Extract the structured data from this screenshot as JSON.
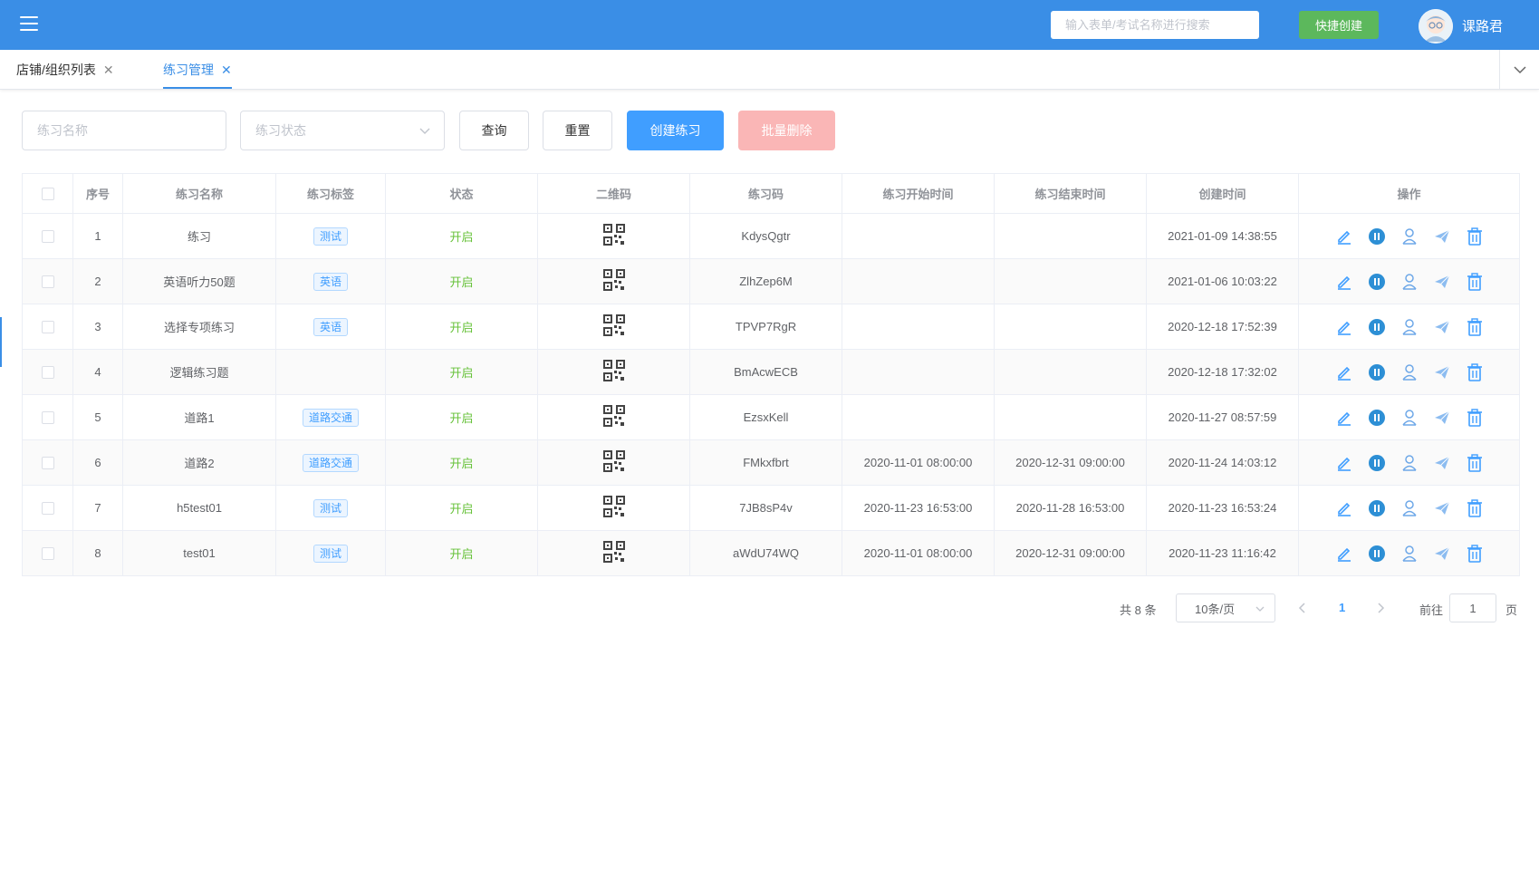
{
  "header": {
    "menu_icon": "hamburger-menu-icon",
    "search_placeholder": "输入表单/考试名称进行搜索",
    "quick_create": "快捷创建",
    "username": "课路君"
  },
  "tabs": [
    {
      "label": "店铺/组织列表",
      "active": false
    },
    {
      "label": "练习管理",
      "active": true
    }
  ],
  "filters": {
    "name_placeholder": "练习名称",
    "status_placeholder": "练习状态",
    "query": "查询",
    "reset": "重置",
    "create": "创建练习",
    "batch_delete": "批量删除"
  },
  "table": {
    "headers": [
      "序号",
      "练习名称",
      "练习标签",
      "状态",
      "二维码",
      "练习码",
      "练习开始时间",
      "练习结束时间",
      "创建时间",
      "操作"
    ],
    "rows": [
      {
        "index": "1",
        "name": "练习",
        "tag": "测试",
        "status": "开启",
        "code": "KdysQgtr",
        "start": "",
        "end": "",
        "created": "2021-01-09 14:38:55"
      },
      {
        "index": "2",
        "name": "英语听力50题",
        "tag": "英语",
        "status": "开启",
        "code": "ZlhZep6M",
        "start": "",
        "end": "",
        "created": "2021-01-06 10:03:22"
      },
      {
        "index": "3",
        "name": "选择专项练习",
        "tag": "英语",
        "status": "开启",
        "code": "TPVP7RgR",
        "start": "",
        "end": "",
        "created": "2020-12-18 17:52:39"
      },
      {
        "index": "4",
        "name": "逻辑练习题",
        "tag": "",
        "status": "开启",
        "code": "BmAcwECB",
        "start": "",
        "end": "",
        "created": "2020-12-18 17:32:02"
      },
      {
        "index": "5",
        "name": "道路1",
        "tag": "道路交通",
        "status": "开启",
        "code": "EzsxKell",
        "start": "",
        "end": "",
        "created": "2020-11-27 08:57:59"
      },
      {
        "index": "6",
        "name": "道路2",
        "tag": "道路交通",
        "status": "开启",
        "code": "FMkxfbrt",
        "start": "2020-11-01 08:00:00",
        "end": "2020-12-31 09:00:00",
        "created": "2020-11-24 14:03:12"
      },
      {
        "index": "7",
        "name": "h5test01",
        "tag": "测试",
        "status": "开启",
        "code": "7JB8sP4v",
        "start": "2020-11-23 16:53:00",
        "end": "2020-11-28 16:53:00",
        "created": "2020-11-23 16:53:24"
      },
      {
        "index": "8",
        "name": "test01",
        "tag": "测试",
        "status": "开启",
        "code": "aWdU74WQ",
        "start": "2020-11-01 08:00:00",
        "end": "2020-12-31 09:00:00",
        "created": "2020-11-23 11:16:42"
      }
    ],
    "op_icons": [
      "edit-icon",
      "pause-icon",
      "user-assign-icon",
      "send-icon",
      "delete-icon"
    ]
  },
  "pagination": {
    "total": "共 8 条",
    "page_size": "10条/页",
    "current": "1",
    "goto_label": "前往",
    "goto_value": "1",
    "page_unit": "页"
  },
  "colors": {
    "primary": "#409eff",
    "header": "#3a8ee6",
    "success": "#67c23a",
    "quick_create": "#5cb85c",
    "danger_disabled": "#fab6b6"
  }
}
